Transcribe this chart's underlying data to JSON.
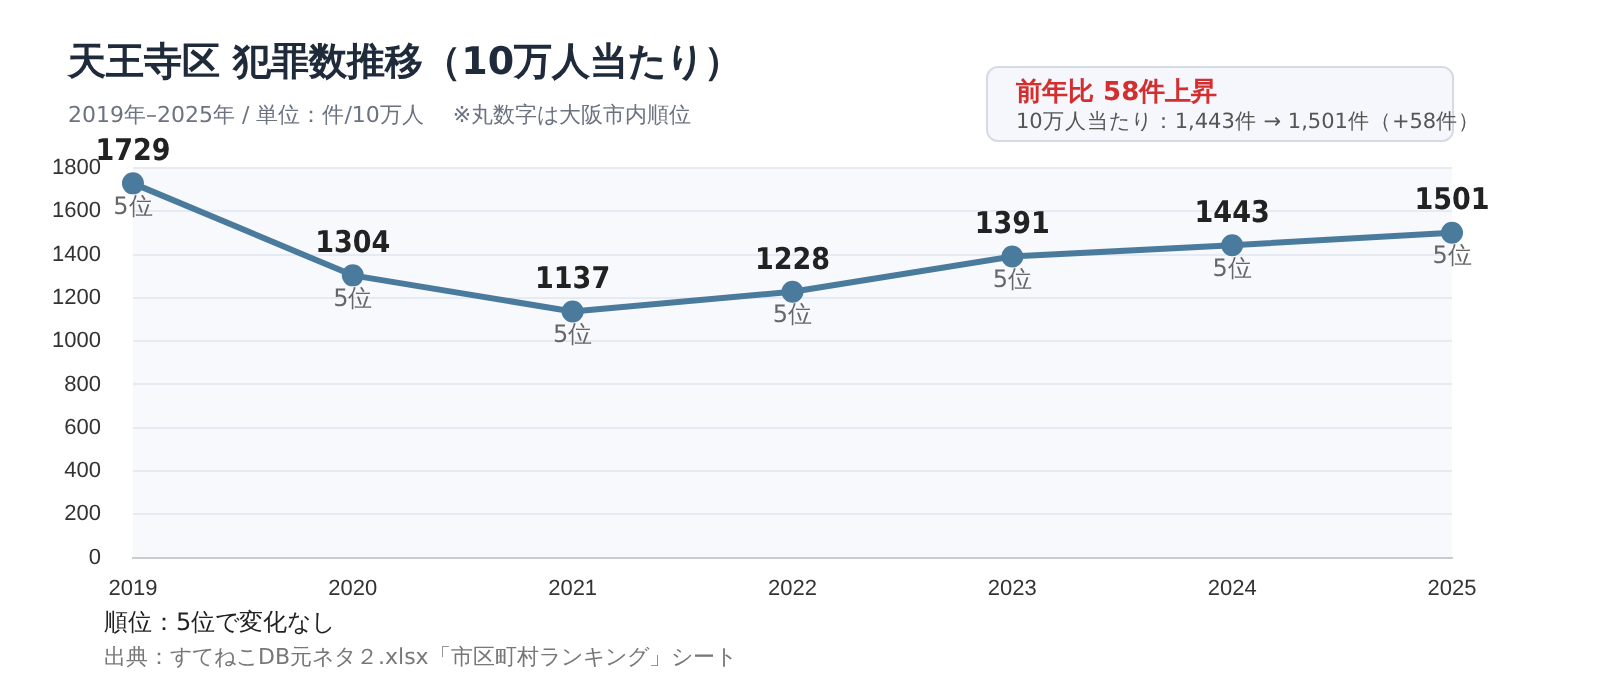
{
  "chart_data": {
    "type": "line",
    "title": "天王寺区  犯罪数推移（10万人当たり）",
    "subtitle": "2019年–2025年 / 単位：件/10万人　 ※丸数字は大阪市内順位",
    "categories": [
      "2019",
      "2020",
      "2021",
      "2022",
      "2023",
      "2024",
      "2025"
    ],
    "series": [
      {
        "color": "#4a7b9d",
        "values": [
          1729,
          1304,
          1137,
          1228,
          1391,
          1443,
          1501
        ]
      }
    ],
    "ylim": [
      0,
      1800
    ],
    "yticks": [
      0,
      200,
      400,
      600,
      800,
      1000,
      1200,
      1400,
      1600,
      1800
    ],
    "grid": "y",
    "marker": "circle",
    "line_style": "solid",
    "data_labels": true,
    "annotations": [
      "前年比  58件上昇",
      "10万人当たり：1,443件 → 1,501件（+58件）",
      "順位：5位で変化なし",
      "出典：すてねこDB元ネタ２.xlsx「市区町村ランキング」シート",
      {
        "text": "5位",
        "x": "2019",
        "y": 1729
      },
      {
        "text": "5位",
        "x": "2020",
        "y": 1304
      },
      {
        "text": "5位",
        "x": "2021",
        "y": 1137
      },
      {
        "text": "5位",
        "x": "2022",
        "y": 1228
      },
      {
        "text": "5位",
        "x": "2023",
        "y": 1391
      },
      {
        "text": "5位",
        "x": "2024",
        "y": 1443
      },
      {
        "text": "5位",
        "x": "2025",
        "y": 1501
      }
    ]
  }
}
